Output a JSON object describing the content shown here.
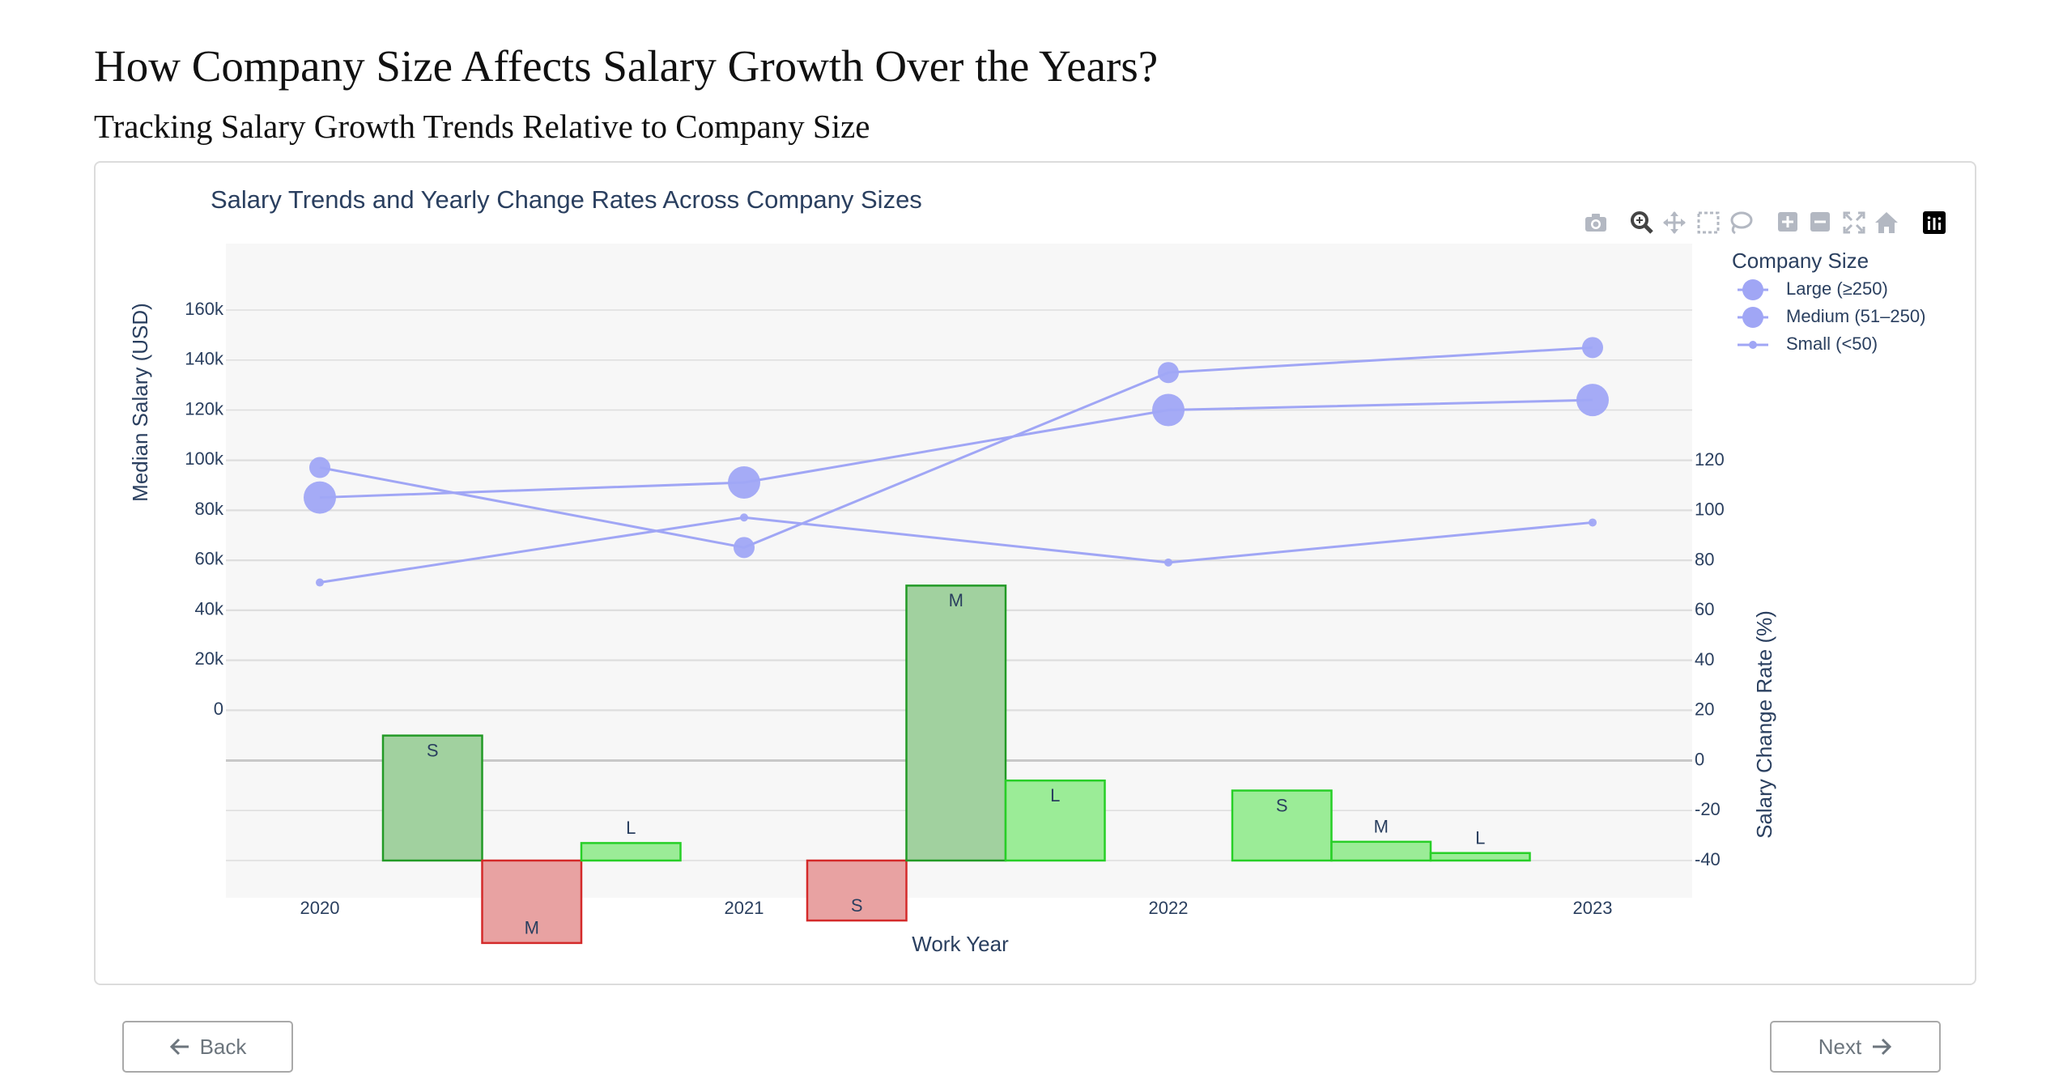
{
  "page": {
    "title": "How Company Size Affects Salary Growth Over the Years?",
    "subtitle": "Tracking Salary Growth Trends Relative to Company Size"
  },
  "navigation": {
    "back_label": "Back",
    "next_label": "Next"
  },
  "toolbar": {
    "icons": [
      "camera-icon",
      "zoom-icon",
      "pan-icon",
      "box-select-icon",
      "lasso-select-icon",
      "zoom-in-icon",
      "zoom-out-icon",
      "autoscale-icon",
      "reset-axes-icon",
      "plotly-logo-icon"
    ]
  },
  "chart_data": {
    "type": "bar",
    "title": "Salary Trends and Yearly Change Rates Across Company Sizes",
    "xlabel": "Work Year",
    "ylabel": "Median Salary (USD)",
    "y2label": "Salary Change Rate (%)",
    "x_ticks": [
      "2020",
      "2021",
      "2022",
      "2023"
    ],
    "y_ticks": [
      "0",
      "20k",
      "40k",
      "60k",
      "80k",
      "100k",
      "120k",
      "140k",
      "160k"
    ],
    "y2_ticks": [
      "-40",
      "-20",
      "0",
      "20",
      "40",
      "60",
      "80",
      "100",
      "120"
    ],
    "y_range": [
      -100000,
      160000
    ],
    "y2_range": [
      -40,
      220
    ],
    "grid": true,
    "legend": {
      "title": "Company Size",
      "placement": "top-right",
      "entries": [
        "Large (≥250)",
        "Medium (51–250)",
        "Small (<50)"
      ]
    },
    "line_color": "#a0a6f5",
    "line_series": [
      {
        "name": "Large (≥250)",
        "x": [
          2020,
          2021,
          2022,
          2023
        ],
        "values": [
          97000,
          65000,
          135000,
          145000
        ],
        "marker": "medium"
      },
      {
        "name": "Medium (51–250)",
        "x": [
          2020,
          2021,
          2022,
          2023
        ],
        "values": [
          85000,
          91000,
          120000,
          124000
        ],
        "marker": "large"
      },
      {
        "name": "Small (<50)",
        "x": [
          2020,
          2021,
          2022,
          2023
        ],
        "values": [
          51000,
          77000,
          59000,
          75000
        ],
        "marker": "small"
      }
    ],
    "bars": [
      {
        "x": 2020,
        "label": "S",
        "value": 50,
        "style": "green-dark"
      },
      {
        "x": 2020,
        "label": "M",
        "value": -33,
        "style": "red"
      },
      {
        "x": 2020,
        "label": "L",
        "value": 7,
        "style": "green-light"
      },
      {
        "x": 2021,
        "label": "S",
        "value": -24,
        "style": "red"
      },
      {
        "x": 2021,
        "label": "M",
        "value": 110,
        "style": "green-dark"
      },
      {
        "x": 2021,
        "label": "L",
        "value": 32,
        "style": "green-light"
      },
      {
        "x": 2022,
        "label": "S",
        "value": 28,
        "style": "green-light"
      },
      {
        "x": 2022,
        "label": "M",
        "value": 7.5,
        "style": "green-light"
      },
      {
        "x": 2022,
        "label": "L",
        "value": 3,
        "style": "green-light"
      }
    ],
    "bar_colors": {
      "green-dark": {
        "fill": "#a1d19f",
        "stroke": "#229a26"
      },
      "green-light": {
        "fill": "#9bec97",
        "stroke": "#27cf27"
      },
      "red": {
        "fill": "#e8a2a2",
        "stroke": "#d42a2a"
      }
    }
  }
}
